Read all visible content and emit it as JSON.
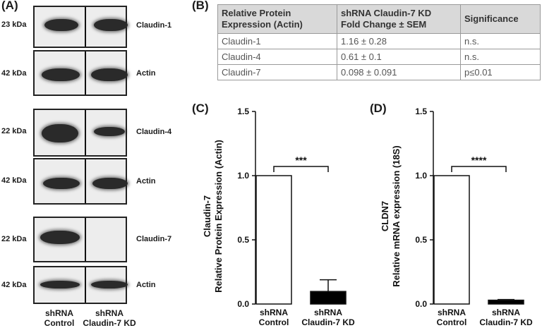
{
  "panels": {
    "a": "(A)",
    "b": "(B)",
    "c": "(C)",
    "d": "(D)"
  },
  "blots": [
    {
      "kda": "23 kDa",
      "label": "Claudin-1"
    },
    {
      "kda": "42 kDa",
      "label": "Actin"
    },
    {
      "kda": "22 kDa",
      "label": "Claudin-4"
    },
    {
      "kda": "42 kDa",
      "label": "Actin"
    },
    {
      "kda": "22 kDa",
      "label": "Claudin-7"
    },
    {
      "kda": "42 kDa",
      "label": "Actin"
    }
  ],
  "lanes": [
    {
      "line1": "shRNA",
      "line2": "Control"
    },
    {
      "line1": "shRNA",
      "line2": "Claudin-7 KD"
    }
  ],
  "table": {
    "headers": [
      [
        "Relative Protein",
        "Expression (Actin)"
      ],
      [
        "shRNA Claudin-7 KD",
        "Fold Change ± SEM"
      ],
      [
        "Significance"
      ]
    ],
    "rows": [
      [
        "Claudin-1",
        "1.16 ± 0.28",
        "n.s."
      ],
      [
        "Claudin-4",
        "0.61 ± 0.1",
        "n.s."
      ],
      [
        "Claudin-7",
        "0.098 ± 0.091",
        "p≤0.01"
      ]
    ]
  },
  "chart_data": [
    {
      "type": "bar",
      "panel": "(C)",
      "categories": [
        [
          "shRNA",
          "Control"
        ],
        [
          "shRNA",
          "Claudin-7 KD"
        ]
      ],
      "values": [
        1.0,
        0.098
      ],
      "errors": [
        0,
        0.091
      ],
      "bar_colors": [
        "#ffffff",
        "#000000"
      ],
      "ylabel": [
        "Claudin-7",
        "Relative Protein Expression (Actin)"
      ],
      "ylim": [
        0,
        1.5
      ],
      "yticks": [
        "0.0",
        "0.5",
        "1.0",
        "1.5"
      ],
      "significance": "***"
    },
    {
      "type": "bar",
      "panel": "(D)",
      "categories": [
        [
          "shRNA",
          "Control"
        ],
        [
          "shRNA",
          "Claudin-7 KD"
        ]
      ],
      "values": [
        1.0,
        0.03
      ],
      "errors": [
        0,
        0.005
      ],
      "bar_colors": [
        "#ffffff",
        "#000000"
      ],
      "ylabel": [
        "CLDN7",
        "Relative mRNA expression (18S)"
      ],
      "ylim": [
        0,
        1.5
      ],
      "yticks": [
        "0.0",
        "0.5",
        "1.0",
        "1.5"
      ],
      "significance": "****"
    }
  ]
}
